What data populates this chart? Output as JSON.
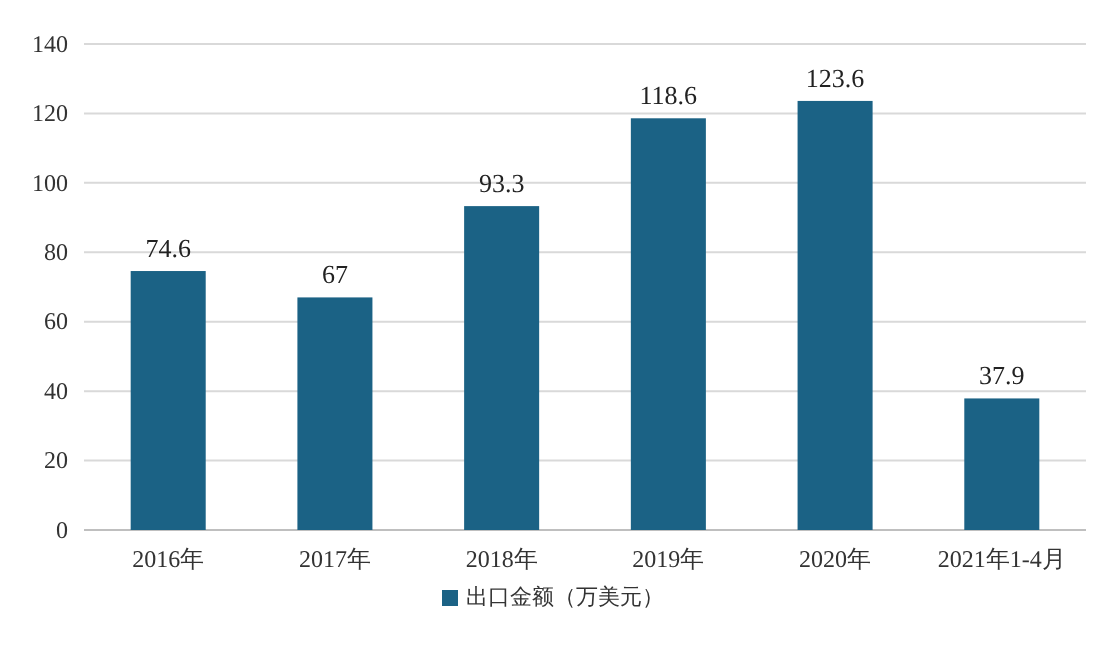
{
  "chart_data": {
    "type": "bar",
    "categories": [
      "2016年",
      "2017年",
      "2018年",
      "2019年",
      "2020年",
      "2021年1-4月"
    ],
    "series": [
      {
        "name": "出口金额（万美元）",
        "color": "#1b6285",
        "values": [
          74.6,
          67,
          93.3,
          118.6,
          123.6,
          37.9
        ]
      }
    ],
    "ylim": [
      0,
      140
    ],
    "yticks": [
      0,
      20,
      40,
      60,
      80,
      100,
      120,
      140
    ],
    "grid": "y",
    "legend": "bottom",
    "data_labels": true
  }
}
